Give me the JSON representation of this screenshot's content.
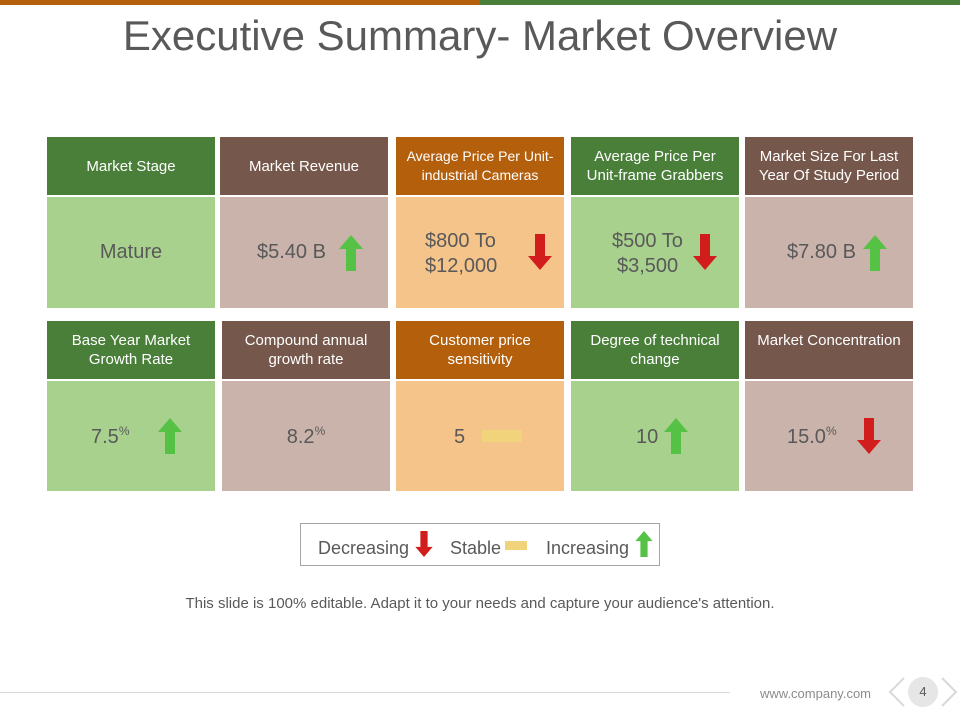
{
  "title": "Executive Summary- Market Overview",
  "colors": {
    "green_header": "#4a7f3a",
    "green_body": "#a9d18e",
    "brown_header": "#76574b",
    "brown_body": "#c9b3ab",
    "orange_header": "#b35f0c",
    "orange_body": "#f5c48a",
    "arrow_up": "#55c246",
    "arrow_down": "#d21d1d",
    "stable": "#f0d37a"
  },
  "cards_row1": [
    {
      "header": "Market Stage",
      "value": "Mature",
      "indicator": "none"
    },
    {
      "header": "Market Revenue",
      "value": "$5.40 B",
      "indicator": "increasing"
    },
    {
      "header": "Average Price Per Unit-industrial Cameras",
      "value_line1": "$800 To",
      "value_line2": "$12,000",
      "indicator": "decreasing"
    },
    {
      "header": "Average Price Per Unit-frame Grabbers",
      "value_line1": "$500 To",
      "value_line2": "$3,500",
      "indicator": "decreasing"
    },
    {
      "header": "Market Size For Last Year Of Study Period",
      "value": "$7.80 B",
      "indicator": "increasing"
    }
  ],
  "cards_row2": [
    {
      "header": "Base Year Market Growth Rate",
      "value": "7.5",
      "suffix": "%",
      "indicator": "increasing"
    },
    {
      "header": "Compound annual growth rate",
      "value": "8.2",
      "suffix": "%",
      "indicator": "none"
    },
    {
      "header": "Customer price sensitivity",
      "value": "5",
      "indicator": "stable"
    },
    {
      "header": "Degree of technical change",
      "value": "10",
      "indicator": "increasing"
    },
    {
      "header": "Market Concentration",
      "value": "15.0",
      "suffix": "%",
      "indicator": "decreasing"
    }
  ],
  "legend": {
    "decreasing": "Decreasing",
    "stable": "Stable",
    "increasing": "Increasing"
  },
  "footer_note": "This slide is 100% editable. Adapt it to your needs and capture your audience's attention.",
  "url": "www.company.com",
  "page_number": "4"
}
